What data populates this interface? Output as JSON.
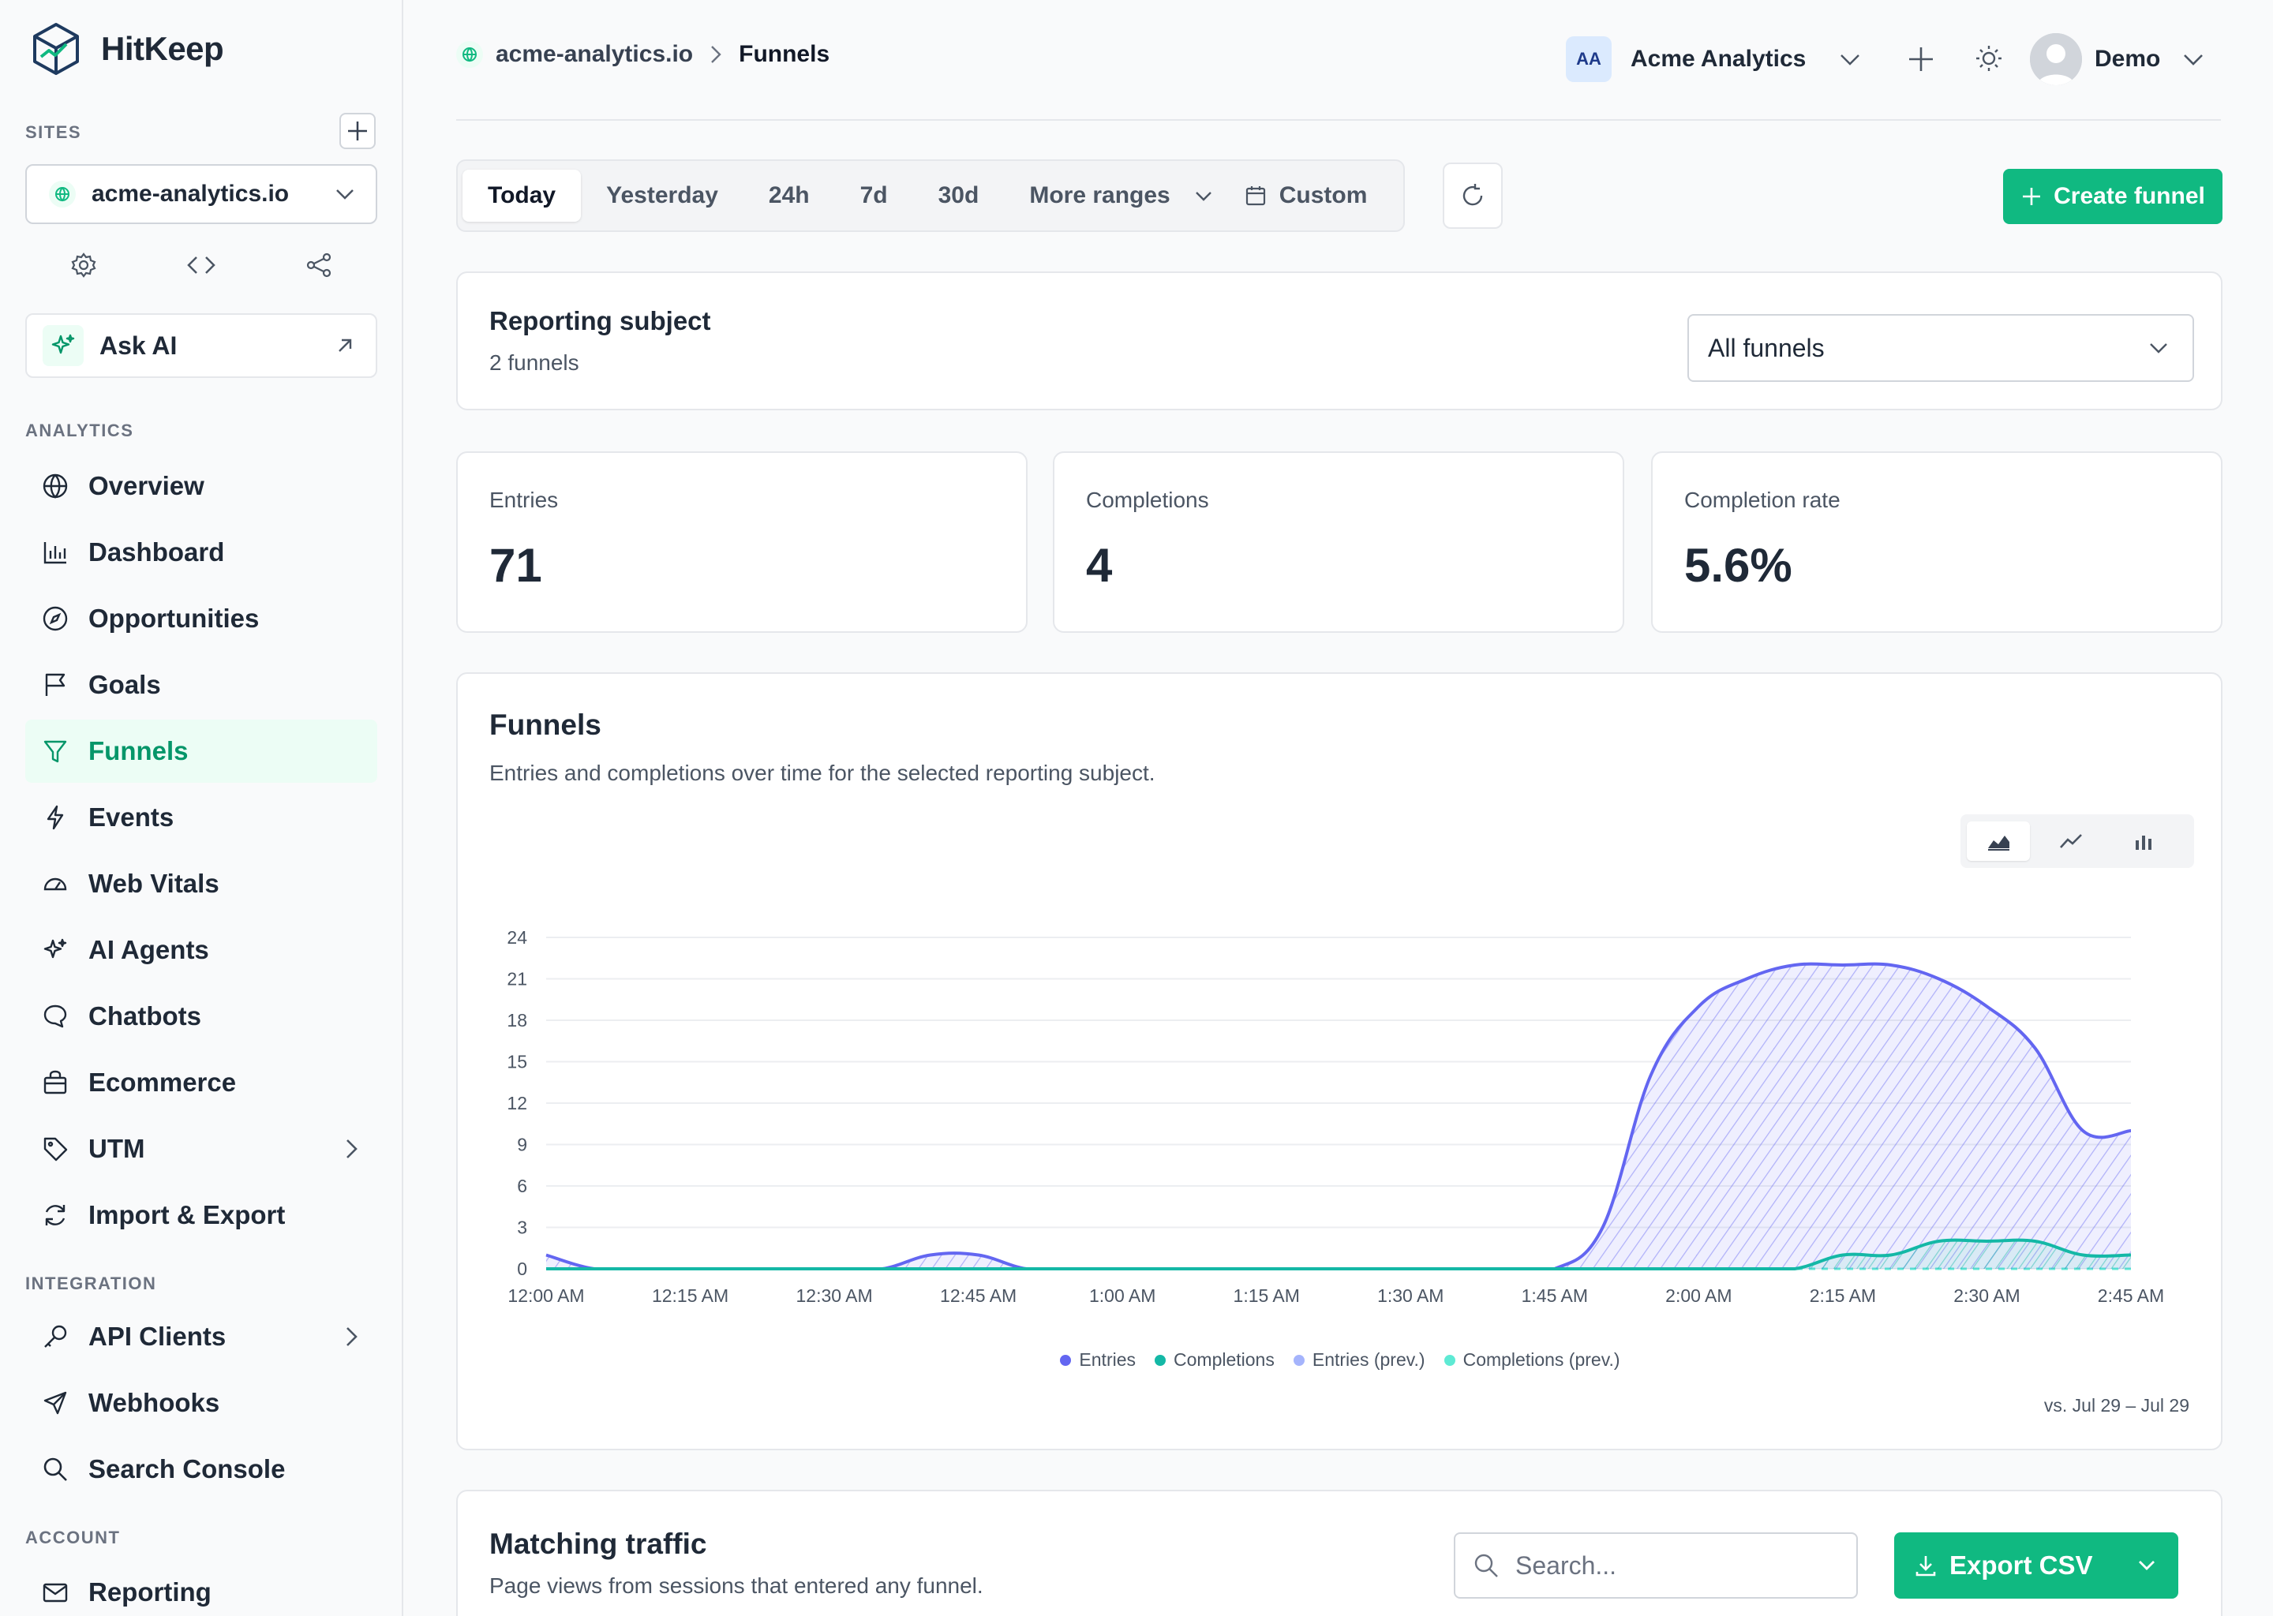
{
  "app": {
    "name": "HitKeep"
  },
  "sidebar": {
    "sites_label": "SITES",
    "site": "acme-analytics.io",
    "ask_ai": "Ask AI",
    "analytics_label": "ANALYTICS",
    "analytics_items": [
      {
        "label": "Overview",
        "icon": "globe-icon"
      },
      {
        "label": "Dashboard",
        "icon": "bar-chart-icon"
      },
      {
        "label": "Opportunities",
        "icon": "compass-icon"
      },
      {
        "label": "Goals",
        "icon": "flag-icon"
      },
      {
        "label": "Funnels",
        "icon": "funnel-icon",
        "active": true
      },
      {
        "label": "Events",
        "icon": "bolt-icon"
      },
      {
        "label": "Web Vitals",
        "icon": "gauge-icon"
      },
      {
        "label": "AI Agents",
        "icon": "sparkles-icon"
      },
      {
        "label": "Chatbots",
        "icon": "chat-icon"
      },
      {
        "label": "Ecommerce",
        "icon": "bag-icon"
      },
      {
        "label": "UTM",
        "icon": "tag-icon"
      },
      {
        "label": "Import & Export",
        "icon": "sync-icon"
      }
    ],
    "integration_label": "INTEGRATION",
    "integration_items": [
      {
        "label": "API Clients",
        "icon": "key-icon"
      },
      {
        "label": "Webhooks",
        "icon": "send-icon"
      },
      {
        "label": "Search Console",
        "icon": "search-icon"
      }
    ],
    "account_label": "ACCOUNT",
    "account_items": [
      {
        "label": "Reporting",
        "icon": "mail-icon"
      }
    ]
  },
  "header": {
    "breadcrumb_site": "acme-analytics.io",
    "breadcrumb_page": "Funnels",
    "team_initials": "AA",
    "team_name": "Acme Analytics",
    "user_name": "Demo"
  },
  "ranges": [
    "Today",
    "Yesterday",
    "24h",
    "7d",
    "30d"
  ],
  "range_more": "More ranges",
  "range_custom": "Custom",
  "create_funnel": "Create funnel",
  "subject": {
    "title": "Reporting subject",
    "count": "2 funnels",
    "select_value": "All funnels"
  },
  "stats": [
    {
      "label": "Entries",
      "value": "71"
    },
    {
      "label": "Completions",
      "value": "4"
    },
    {
      "label": "Completion rate",
      "value": "5.6%"
    }
  ],
  "chart_card": {
    "title": "Funnels",
    "subtitle": "Entries and completions over time for the selected reporting subject.",
    "comparison": "vs. Jul 29 – Jul 29"
  },
  "chart_data": {
    "type": "area",
    "x": [
      "12:00 AM",
      "12:05 AM",
      "12:10 AM",
      "12:15 AM",
      "12:20 AM",
      "12:25 AM",
      "12:30 AM",
      "12:35 AM",
      "12:40 AM",
      "12:45 AM",
      "12:50 AM",
      "12:55 AM",
      "1:00 AM",
      "1:05 AM",
      "1:10 AM",
      "1:15 AM",
      "1:20 AM",
      "1:25 AM",
      "1:30 AM",
      "1:35 AM",
      "1:40 AM",
      "1:45 AM",
      "1:50 AM",
      "1:55 AM",
      "2:00 AM",
      "2:05 AM",
      "2:10 AM",
      "2:15 AM",
      "2:20 AM",
      "2:25 AM",
      "2:30 AM",
      "2:35 AM",
      "2:40 AM",
      "2:45 AM"
    ],
    "x_tick_labels": [
      "12:00 AM",
      "12:15 AM",
      "12:30 AM",
      "12:45 AM",
      "1:00 AM",
      "1:15 AM",
      "1:30 AM",
      "1:45 AM",
      "2:00 AM",
      "2:15 AM",
      "2:30 AM",
      "2:45 AM"
    ],
    "series": [
      {
        "name": "Entries",
        "color": "#6366f1",
        "values": [
          1,
          0,
          0,
          0,
          0,
          0,
          0,
          0,
          1,
          1,
          0,
          0,
          0,
          0,
          0,
          0,
          0,
          0,
          0,
          0,
          0,
          0,
          3,
          14,
          19,
          21,
          22,
          22,
          22,
          21,
          19,
          16,
          10,
          10
        ]
      },
      {
        "name": "Completions",
        "color": "#14b8a6",
        "values": [
          0,
          0,
          0,
          0,
          0,
          0,
          0,
          0,
          0,
          0,
          0,
          0,
          0,
          0,
          0,
          0,
          0,
          0,
          0,
          0,
          0,
          0,
          0,
          0,
          0,
          0,
          0,
          1,
          1,
          2,
          2,
          2,
          1,
          1
        ]
      },
      {
        "name": "Entries (prev.)",
        "color": "#a5b4fc",
        "values": [
          0,
          0,
          0,
          0,
          0,
          0,
          0,
          0,
          0,
          0,
          0,
          0,
          0,
          0,
          0,
          0,
          0,
          0,
          0,
          0,
          0,
          0,
          0,
          0,
          0,
          0,
          0,
          0,
          0,
          0,
          0,
          0,
          0,
          0
        ]
      },
      {
        "name": "Completions (prev.)",
        "color": "#5eead4",
        "values": [
          0,
          0,
          0,
          0,
          0,
          0,
          0,
          0,
          0,
          0,
          0,
          0,
          0,
          0,
          0,
          0,
          0,
          0,
          0,
          0,
          0,
          0,
          0,
          0,
          0,
          0,
          0,
          0,
          0,
          0,
          0,
          0,
          0,
          0
        ]
      }
    ],
    "y_ticks": [
      0,
      3,
      6,
      9,
      12,
      15,
      18,
      21,
      24
    ],
    "ylim": [
      0,
      24
    ],
    "grid": true,
    "legend": "bottom"
  },
  "traffic": {
    "title": "Matching traffic",
    "subtitle": "Page views from sessions that entered any funnel.",
    "search_placeholder": "Search...",
    "export_label": "Export CSV"
  }
}
